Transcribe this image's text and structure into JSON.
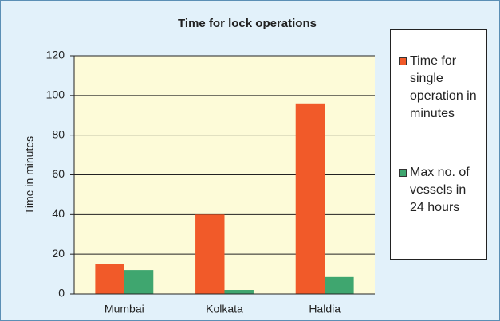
{
  "chart_data": {
    "type": "bar",
    "title": "Time for lock operations",
    "y_label": "Time in minutes",
    "categories": [
      "Mumbai",
      "Kolkata",
      "Haldia"
    ],
    "series": [
      {
        "name": "Time for single operation in minutes",
        "color": "#f15a29",
        "values": [
          15,
          40,
          96
        ]
      },
      {
        "name": "Max no. of vessels in 24 hours",
        "color": "#3fa66f",
        "values": [
          12,
          2,
          8.5
        ]
      }
    ],
    "ylim": [
      0,
      120
    ],
    "yticks": [
      0,
      20,
      40,
      60,
      80,
      100,
      120
    ],
    "grid": true,
    "legend": "right"
  }
}
